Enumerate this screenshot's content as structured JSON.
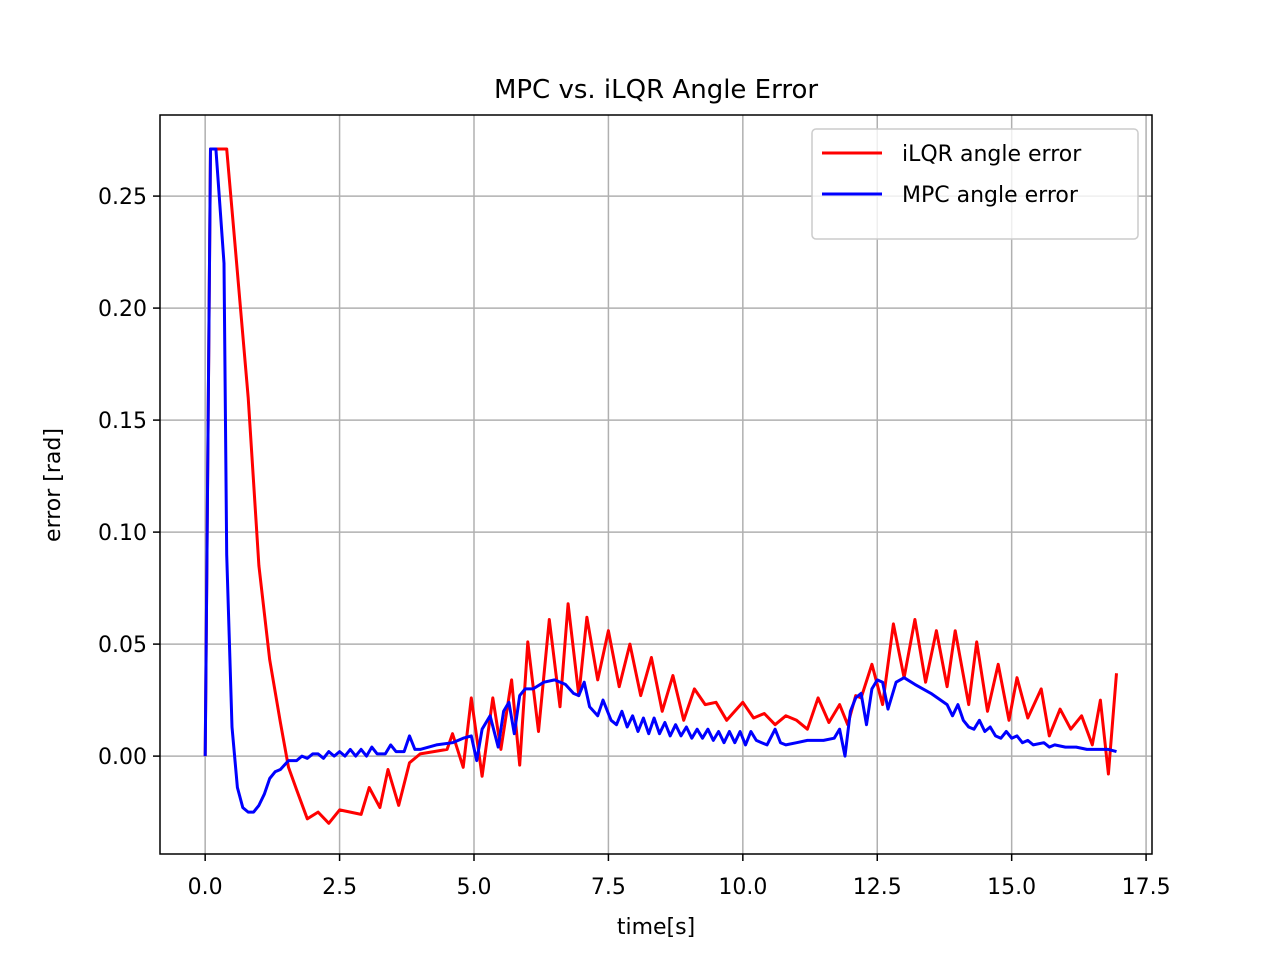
{
  "chart_data": {
    "type": "line",
    "title": "MPC vs. iLQR Angle Error",
    "x_label": "time[s]",
    "y_label": "error [rad]",
    "xlim": [
      -0.84,
      17.61
    ],
    "ylim": [
      -0.0437,
      0.2862
    ],
    "xticks": [
      {
        "value": 0,
        "label": "0.0"
      },
      {
        "value": 2.5,
        "label": "2.5"
      },
      {
        "value": 5,
        "label": "5.0"
      },
      {
        "value": 7.5,
        "label": "7.5"
      },
      {
        "value": 10,
        "label": "10.0"
      },
      {
        "value": 12.5,
        "label": "12.5"
      },
      {
        "value": 15,
        "label": "15.0"
      },
      {
        "value": 17.5,
        "label": "17.5"
      }
    ],
    "yticks": [
      {
        "value": 0,
        "label": "0.00"
      },
      {
        "value": 0.05,
        "label": "0.05"
      },
      {
        "value": 0.1,
        "label": "0.10"
      },
      {
        "value": 0.15,
        "label": "0.15"
      },
      {
        "value": 0.2,
        "label": "0.20"
      },
      {
        "value": 0.25,
        "label": "0.25"
      }
    ],
    "grid": true,
    "legend": "upper right",
    "series": [
      {
        "name": "iLQR angle error",
        "color": "#ff0000",
        "x": [
          0,
          0.1,
          0.4,
          0.55,
          0.8,
          1.0,
          1.2,
          1.4,
          1.55,
          1.7,
          1.9,
          2.1,
          2.3,
          2.5,
          2.9,
          3.05,
          3.25,
          3.4,
          3.6,
          3.8,
          4.0,
          4.5,
          4.6,
          4.8,
          4.95,
          5.15,
          5.35,
          5.5,
          5.7,
          5.85,
          6.0,
          6.2,
          6.4,
          6.6,
          6.75,
          6.95,
          7.1,
          7.3,
          7.5,
          7.7,
          7.9,
          8.1,
          8.3,
          8.5,
          8.7,
          8.9,
          9.1,
          9.3,
          9.5,
          9.7,
          10.0,
          10.2,
          10.4,
          10.6,
          10.8,
          11.0,
          11.2,
          11.4,
          11.6,
          11.8,
          11.95,
          12.1,
          12.2,
          12.4,
          12.6,
          12.8,
          13.0,
          13.2,
          13.4,
          13.6,
          13.8,
          13.95,
          14.2,
          14.35,
          14.55,
          14.75,
          14.95,
          15.1,
          15.3,
          15.55,
          15.7,
          15.9,
          16.1,
          16.3,
          16.5,
          16.65,
          16.8,
          16.95
        ],
        "values": [
          0,
          0.271,
          0.271,
          0.23,
          0.16,
          0.085,
          0.043,
          0.015,
          -0.005,
          -0.015,
          -0.028,
          -0.025,
          -0.03,
          -0.024,
          -0.026,
          -0.014,
          -0.023,
          -0.006,
          -0.022,
          -0.003,
          0.001,
          0.003,
          0.01,
          -0.005,
          0.026,
          -0.009,
          0.026,
          0.003,
          0.034,
          -0.004,
          0.051,
          0.011,
          0.061,
          0.022,
          0.068,
          0.027,
          0.062,
          0.034,
          0.056,
          0.031,
          0.05,
          0.027,
          0.044,
          0.02,
          0.036,
          0.016,
          0.03,
          0.023,
          0.024,
          0.016,
          0.024,
          0.017,
          0.019,
          0.014,
          0.018,
          0.016,
          0.012,
          0.026,
          0.015,
          0.023,
          0.014,
          0.027,
          0.026,
          0.041,
          0.023,
          0.059,
          0.035,
          0.061,
          0.033,
          0.056,
          0.031,
          0.056,
          0.023,
          0.051,
          0.02,
          0.041,
          0.016,
          0.035,
          0.017,
          0.03,
          0.009,
          0.021,
          0.012,
          0.018,
          0.005,
          0.025,
          -0.008,
          0.037
        ]
      },
      {
        "name": "MPC angle error",
        "color": "#0000ff",
        "x": [
          0,
          0.1,
          0.2,
          0.35,
          0.4,
          0.5,
          0.6,
          0.7,
          0.8,
          0.9,
          1.0,
          1.1,
          1.2,
          1.3,
          1.4,
          1.55,
          1.7,
          1.8,
          1.9,
          2.0,
          2.1,
          2.2,
          2.3,
          2.4,
          2.5,
          2.6,
          2.7,
          2.8,
          2.9,
          3.0,
          3.1,
          3.2,
          3.35,
          3.45,
          3.55,
          3.7,
          3.8,
          3.9,
          4.0,
          4.3,
          4.6,
          4.8,
          4.95,
          5.05,
          5.15,
          5.3,
          5.45,
          5.55,
          5.65,
          5.75,
          5.85,
          5.95,
          6.1,
          6.3,
          6.5,
          6.7,
          6.85,
          6.95,
          7.05,
          7.15,
          7.3,
          7.4,
          7.55,
          7.65,
          7.75,
          7.85,
          7.95,
          8.05,
          8.15,
          8.25,
          8.35,
          8.45,
          8.55,
          8.65,
          8.75,
          8.85,
          8.95,
          9.05,
          9.15,
          9.25,
          9.35,
          9.45,
          9.55,
          9.65,
          9.75,
          9.85,
          9.95,
          10.05,
          10.15,
          10.25,
          10.35,
          10.45,
          10.6,
          10.7,
          10.8,
          11.0,
          11.2,
          11.5,
          11.7,
          11.8,
          11.9,
          12.0,
          12.1,
          12.2,
          12.3,
          12.4,
          12.5,
          12.6,
          12.7,
          12.85,
          13.0,
          13.2,
          13.5,
          13.8,
          13.9,
          14.0,
          14.1,
          14.2,
          14.3,
          14.4,
          14.5,
          14.6,
          14.7,
          14.8,
          14.9,
          15.0,
          15.1,
          15.2,
          15.3,
          15.4,
          15.6,
          15.7,
          15.8,
          16.0,
          16.2,
          16.4,
          16.6,
          16.8,
          16.95
        ],
        "values": [
          0,
          0.271,
          0.271,
          0.22,
          0.09,
          0.013,
          -0.014,
          -0.023,
          -0.025,
          -0.025,
          -0.022,
          -0.017,
          -0.01,
          -0.007,
          -0.006,
          -0.002,
          -0.002,
          0,
          -0.001,
          0.001,
          0.001,
          -0.001,
          0.002,
          0,
          0.002,
          0,
          0.003,
          0,
          0.003,
          0,
          0.004,
          0.001,
          0.001,
          0.005,
          0.002,
          0.002,
          0.009,
          0.003,
          0.003,
          0.005,
          0.006,
          0.008,
          0.009,
          -0.002,
          0.012,
          0.018,
          0.004,
          0.02,
          0.024,
          0.01,
          0.027,
          0.03,
          0.03,
          0.033,
          0.034,
          0.032,
          0.028,
          0.027,
          0.033,
          0.022,
          0.018,
          0.025,
          0.016,
          0.014,
          0.02,
          0.013,
          0.018,
          0.011,
          0.017,
          0.01,
          0.017,
          0.01,
          0.015,
          0.009,
          0.014,
          0.009,
          0.013,
          0.008,
          0.012,
          0.008,
          0.012,
          0.007,
          0.011,
          0.006,
          0.011,
          0.006,
          0.011,
          0.005,
          0.011,
          0.007,
          0.006,
          0.005,
          0.012,
          0.006,
          0.005,
          0.006,
          0.007,
          0.007,
          0.008,
          0.012,
          0.0,
          0.02,
          0.026,
          0.028,
          0.014,
          0.03,
          0.034,
          0.033,
          0.021,
          0.033,
          0.035,
          0.032,
          0.028,
          0.023,
          0.018,
          0.023,
          0.016,
          0.013,
          0.012,
          0.016,
          0.011,
          0.013,
          0.009,
          0.008,
          0.011,
          0.008,
          0.009,
          0.006,
          0.007,
          0.005,
          0.006,
          0.004,
          0.005,
          0.004,
          0.004,
          0.003,
          0.003,
          0.003,
          0.002
        ]
      }
    ]
  }
}
